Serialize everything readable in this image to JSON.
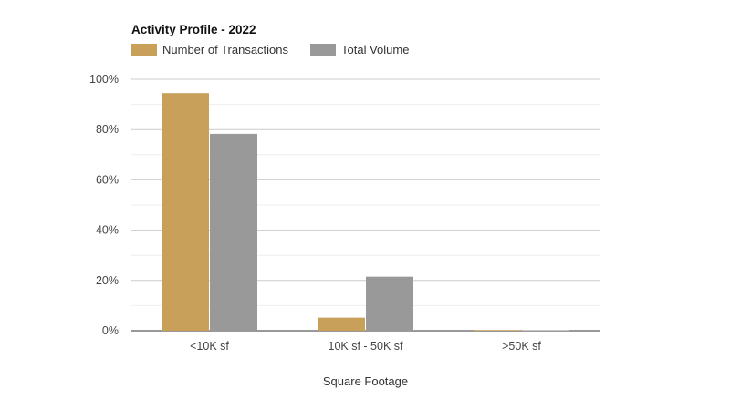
{
  "chart_data": {
    "type": "bar",
    "title": "Activity Profile - 2022",
    "xlabel": "Square Footage",
    "ylabel": "",
    "categories": [
      "<10K sf",
      "10K sf - 50K sf",
      ">50K sf"
    ],
    "series": [
      {
        "name": "Number of Transactions",
        "color": "#c9a05a",
        "values": [
          94.5,
          5.2,
          0.3
        ]
      },
      {
        "name": "Total Volume",
        "color": "#999999",
        "values": [
          78.3,
          21.5,
          0.2
        ]
      }
    ],
    "ylim": [
      0,
      100
    ],
    "yticks": [
      {
        "value": 0,
        "label": "0%"
      },
      {
        "value": 20,
        "label": "20%"
      },
      {
        "value": 40,
        "label": "40%"
      },
      {
        "value": 60,
        "label": "60%"
      },
      {
        "value": 80,
        "label": "80%"
      },
      {
        "value": 100,
        "label": "100%"
      }
    ],
    "grid": true,
    "legend_position": "top-left"
  }
}
